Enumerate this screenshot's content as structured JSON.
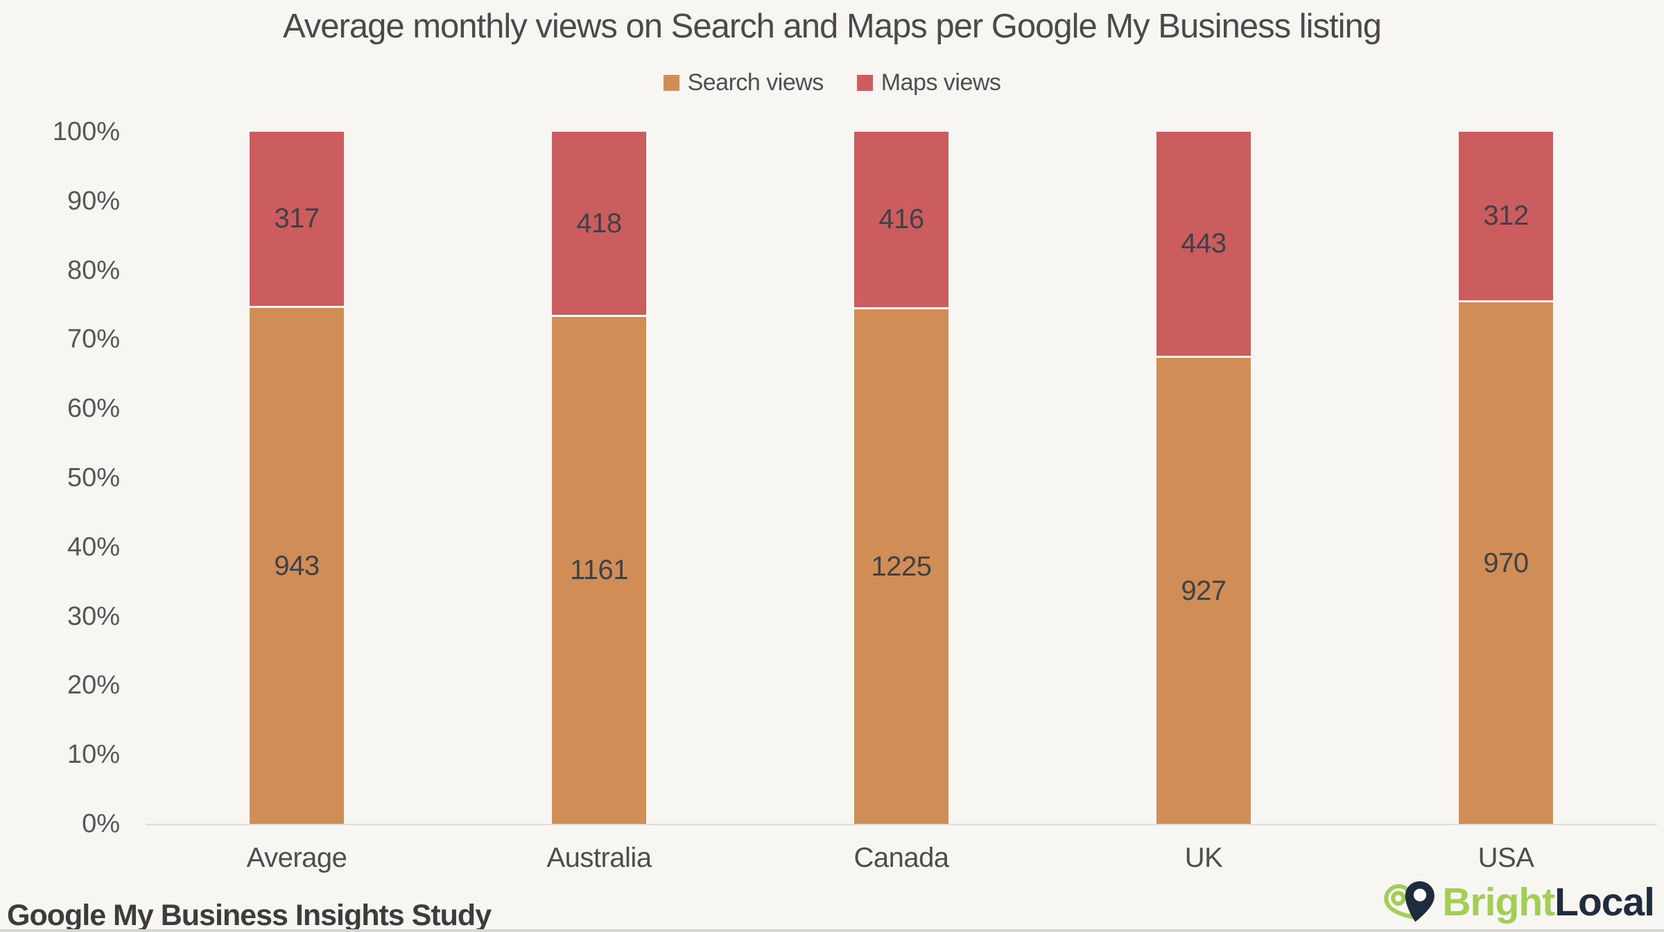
{
  "title": "Average monthly views on Search and Maps per Google My Business listing",
  "chart_data": {
    "type": "bar",
    "stacking": "percent",
    "title": "Average monthly views on Search and Maps per Google My Business listing",
    "categories": [
      "Average",
      "Australia",
      "Canada",
      "UK",
      "USA"
    ],
    "series": [
      {
        "name": "Search views",
        "color": "#d08e56",
        "values": [
          943,
          1161,
          1225,
          927,
          970
        ]
      },
      {
        "name": "Maps views",
        "color": "#cc5d5f",
        "values": [
          317,
          418,
          416,
          443,
          312
        ]
      }
    ],
    "xlabel": "",
    "ylabel": "",
    "ylim": [
      0,
      100
    ],
    "ytick_step": 10,
    "ytick_suffix": "%",
    "grid": false,
    "legend_position": "top"
  },
  "footer": {
    "source": "Google My Business Insights Study"
  },
  "brand": {
    "name_part1": "Bright",
    "name_part2": "Local",
    "green": "#a2ce55",
    "navy": "#1e2c3e"
  },
  "colors": {
    "background": "#f7f6f3",
    "axis_line": "#dddcd9",
    "title_text": "#4a4a4a",
    "tick_text": "#565656",
    "value_text": "#3e4146"
  }
}
